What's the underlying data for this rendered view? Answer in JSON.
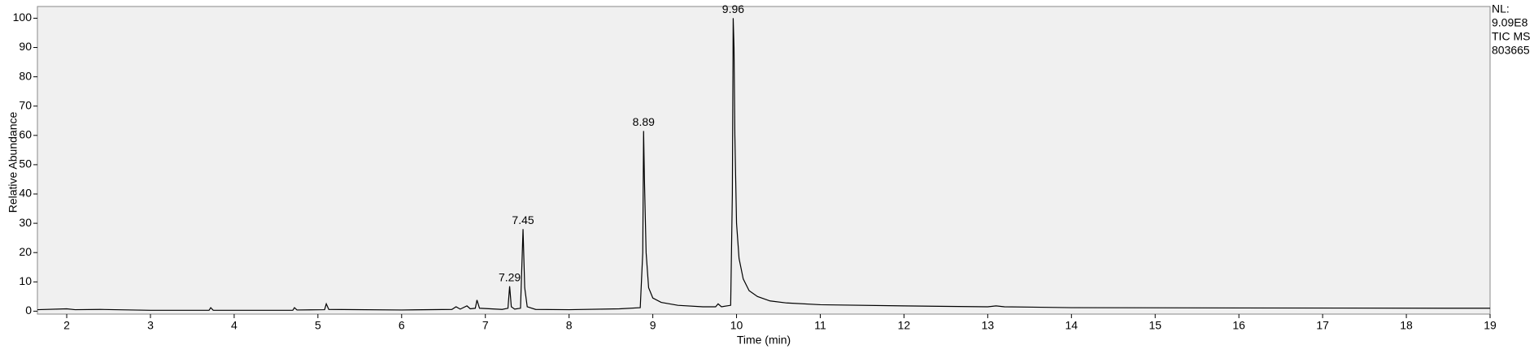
{
  "chart_data": {
    "type": "line",
    "x_label": "Time (min)",
    "y_label": "Relative Abundance",
    "side_notes": [
      "NL:",
      "9.09E8",
      "TIC  MS",
      "803665"
    ],
    "xlim": [
      1.65,
      19
    ],
    "ylim": [
      -1,
      104
    ],
    "xticks": [
      2,
      3,
      4,
      5,
      6,
      7,
      8,
      9,
      10,
      11,
      12,
      13,
      14,
      15,
      16,
      17,
      18,
      19
    ],
    "yticks": [
      0,
      10,
      20,
      30,
      40,
      50,
      60,
      70,
      80,
      90,
      100
    ],
    "color": "#000000",
    "background": "#f0f0f0",
    "series": [
      {
        "name": "TIC",
        "color": "#000000",
        "x": [
          1.65,
          2.0,
          2.1,
          2.4,
          3.0,
          3.7,
          3.72,
          3.75,
          4.7,
          4.72,
          4.75,
          5.08,
          5.1,
          5.13,
          6.0,
          6.6,
          6.65,
          6.7,
          6.78,
          6.82,
          6.88,
          6.9,
          6.93,
          7.2,
          7.27,
          7.29,
          7.31,
          7.35,
          7.42,
          7.45,
          7.47,
          7.5,
          7.6,
          8.0,
          8.6,
          8.85,
          8.88,
          8.89,
          8.9,
          8.92,
          8.95,
          9.0,
          9.1,
          9.3,
          9.6,
          9.75,
          9.78,
          9.82,
          9.93,
          9.95,
          9.96,
          9.97,
          9.98,
          10.0,
          10.03,
          10.08,
          10.15,
          10.25,
          10.4,
          10.6,
          11,
          12,
          13,
          13.1,
          13.2,
          14,
          16,
          19
        ],
        "values": [
          0.5,
          0.8,
          0.5,
          0.6,
          0.3,
          0.3,
          1.2,
          0.3,
          0.3,
          1.2,
          0.4,
          0.5,
          2.5,
          0.6,
          0.4,
          0.6,
          1.5,
          0.7,
          1.8,
          0.8,
          1.0,
          3.8,
          1.0,
          0.6,
          1,
          8.5,
          1.5,
          0.7,
          1,
          28,
          8,
          1.5,
          0.6,
          0.5,
          0.8,
          1.2,
          20,
          61.5,
          45,
          20,
          8,
          4.5,
          3,
          2,
          1.5,
          1.5,
          2.5,
          1.5,
          2,
          40,
          100,
          90,
          60,
          30,
          18,
          11,
          7,
          5,
          3.5,
          2.8,
          2.2,
          1.8,
          1.5,
          1.8,
          1.5,
          1.2,
          1.1,
          1.0
        ]
      }
    ],
    "peaks": [
      {
        "x": 7.29,
        "y": 8.5
      },
      {
        "x": 7.45,
        "y": 28
      },
      {
        "x": 8.89,
        "y": 61.5
      },
      {
        "x": 9.96,
        "y": 100
      }
    ]
  }
}
